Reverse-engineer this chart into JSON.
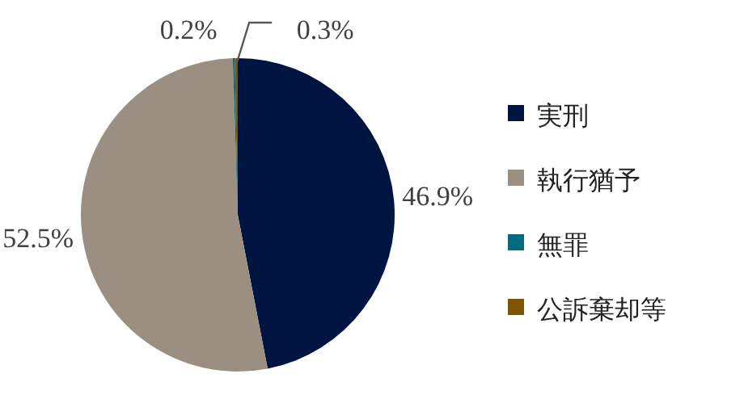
{
  "chart_data": {
    "type": "pie",
    "categories": [
      "実刑",
      "執行猶予",
      "無罪",
      "公訴棄却等"
    ],
    "values": [
      46.9,
      52.5,
      0.2,
      0.3
    ],
    "colors": [
      "#001441",
      "#9b8f81",
      "#006c7e",
      "#7f5500"
    ],
    "value_labels": [
      "46.9%",
      "52.5%",
      "0.2%",
      "0.3%"
    ],
    "legend": "right"
  }
}
